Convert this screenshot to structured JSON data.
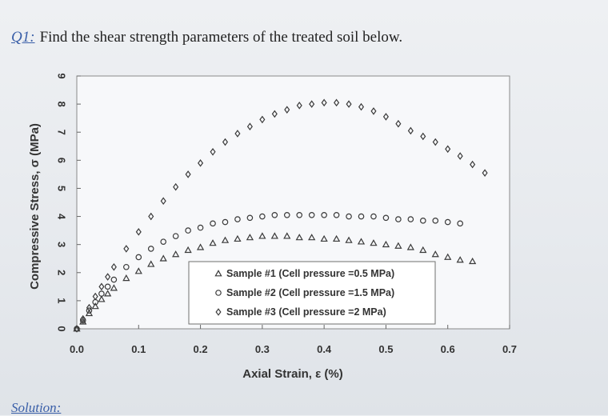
{
  "question": {
    "label": "Q1:",
    "text": "Find the shear strength parameters of the treated soil below."
  },
  "solution_label": "Solution:",
  "chart_data": {
    "type": "scatter",
    "xlabel": "Axial Strain, ε (%)",
    "ylabel": "Compressive Stress, σ (MPa)",
    "xlim": [
      0,
      0.7
    ],
    "ylim": [
      0,
      9
    ],
    "xticks": [
      "0.0",
      "0.1",
      "0.2",
      "0.3",
      "0.4",
      "0.5",
      "0.6",
      "0.7"
    ],
    "yticks": [
      "0",
      "1",
      "2",
      "3",
      "4",
      "5",
      "6",
      "7",
      "8",
      "9"
    ],
    "grid": false,
    "legend_position": "bottom-center",
    "series": [
      {
        "name": "Sample #1 (Cell pressure =0.5 MPa)",
        "marker": "triangle",
        "x": [
          0.0,
          0.01,
          0.02,
          0.03,
          0.04,
          0.05,
          0.06,
          0.08,
          0.1,
          0.12,
          0.14,
          0.16,
          0.18,
          0.2,
          0.22,
          0.24,
          0.26,
          0.28,
          0.3,
          0.32,
          0.34,
          0.36,
          0.38,
          0.4,
          0.42,
          0.44,
          0.46,
          0.48,
          0.5,
          0.52,
          0.54,
          0.56,
          0.58,
          0.6,
          0.62,
          0.64
        ],
        "y": [
          0.0,
          0.25,
          0.55,
          0.8,
          1.05,
          1.25,
          1.45,
          1.8,
          2.05,
          2.3,
          2.5,
          2.65,
          2.8,
          2.9,
          3.05,
          3.15,
          3.2,
          3.25,
          3.3,
          3.3,
          3.3,
          3.25,
          3.25,
          3.2,
          3.2,
          3.15,
          3.1,
          3.05,
          3.0,
          2.95,
          2.9,
          2.8,
          2.65,
          2.55,
          2.45,
          2.4
        ]
      },
      {
        "name": "Sample #2 (Cell pressure =1.5 MPa)",
        "marker": "circle",
        "x": [
          0.0,
          0.01,
          0.02,
          0.03,
          0.04,
          0.05,
          0.06,
          0.08,
          0.1,
          0.12,
          0.14,
          0.16,
          0.18,
          0.2,
          0.22,
          0.24,
          0.26,
          0.28,
          0.3,
          0.32,
          0.34,
          0.36,
          0.38,
          0.4,
          0.42,
          0.44,
          0.46,
          0.48,
          0.5,
          0.52,
          0.54,
          0.56,
          0.58,
          0.6,
          0.62
        ],
        "y": [
          0.0,
          0.3,
          0.65,
          0.95,
          1.25,
          1.5,
          1.75,
          2.2,
          2.55,
          2.85,
          3.1,
          3.3,
          3.5,
          3.6,
          3.75,
          3.8,
          3.9,
          3.95,
          4.0,
          4.05,
          4.05,
          4.05,
          4.05,
          4.05,
          4.05,
          4.0,
          4.0,
          4.0,
          3.95,
          3.9,
          3.9,
          3.85,
          3.85,
          3.8,
          3.75
        ]
      },
      {
        "name": "Sample #3 (Cell pressure =2 MPa)",
        "marker": "diamond",
        "x": [
          0.0,
          0.01,
          0.02,
          0.03,
          0.04,
          0.05,
          0.06,
          0.08,
          0.1,
          0.12,
          0.14,
          0.16,
          0.18,
          0.2,
          0.22,
          0.24,
          0.26,
          0.28,
          0.3,
          0.32,
          0.34,
          0.36,
          0.38,
          0.4,
          0.42,
          0.44,
          0.46,
          0.48,
          0.5,
          0.52,
          0.54,
          0.56,
          0.58,
          0.6,
          0.62,
          0.64,
          0.66
        ],
        "y": [
          0.0,
          0.35,
          0.75,
          1.15,
          1.5,
          1.85,
          2.2,
          2.85,
          3.45,
          4.0,
          4.55,
          5.05,
          5.5,
          5.9,
          6.3,
          6.65,
          6.95,
          7.2,
          7.45,
          7.65,
          7.8,
          7.95,
          8.0,
          8.05,
          8.05,
          8.0,
          7.9,
          7.75,
          7.55,
          7.3,
          7.05,
          6.85,
          6.65,
          6.4,
          6.15,
          5.85,
          5.55
        ]
      }
    ]
  }
}
